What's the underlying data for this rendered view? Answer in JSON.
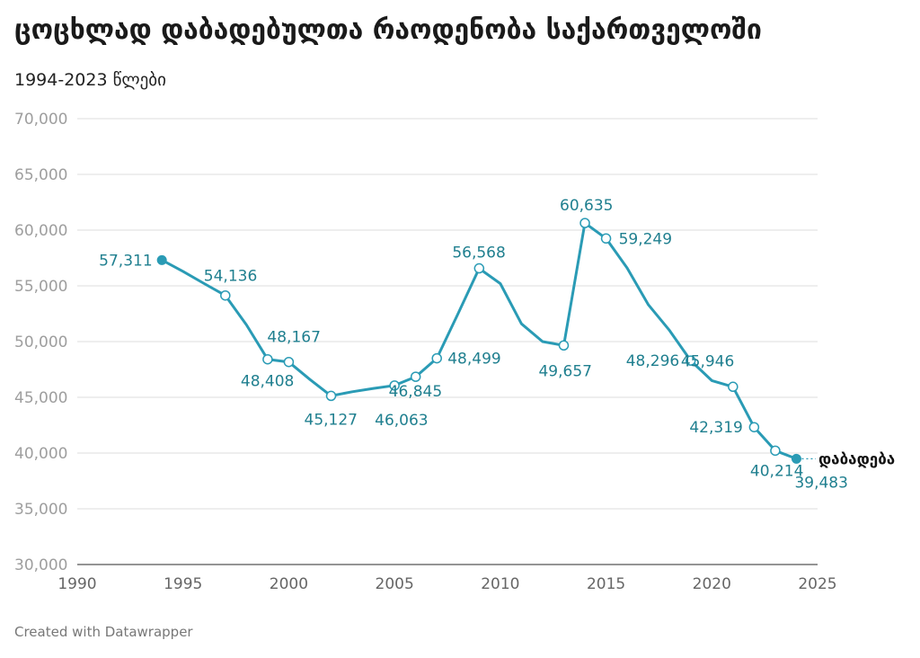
{
  "header": {
    "title": "ცოცხლად დაბადებულთა რაოდენობა საქართველოში",
    "subtitle": "1994-2023 წლები"
  },
  "footer": {
    "credit": "Created with Datawrapper"
  },
  "colors": {
    "line": "#2a9bb5",
    "label": "#1f7f8f",
    "grid": "#dcdcdc"
  },
  "chart_data": {
    "type": "line",
    "title": "ცოცხლად დაბადებულთა რაოდენობა საქართველოში",
    "subtitle": "1994-2023 წლები",
    "xlabel": "",
    "ylabel": "",
    "xlim": [
      1990,
      2025
    ],
    "ylim": [
      30000,
      70000
    ],
    "x_ticks": [
      1990,
      1995,
      2000,
      2005,
      2010,
      2015,
      2020,
      2025
    ],
    "y_ticks": [
      30000,
      35000,
      40000,
      45000,
      50000,
      55000,
      60000,
      65000,
      70000
    ],
    "y_tick_labels": [
      "30,000",
      "35,000",
      "40,000",
      "45,000",
      "50,000",
      "55,000",
      "60,000",
      "65,000",
      "70,000"
    ],
    "grid": true,
    "series": [
      {
        "name": "დაბადება",
        "x": [
          1994,
          1995,
          1996,
          1997,
          1998,
          1999,
          2000,
          2001,
          2002,
          2003,
          2004,
          2005,
          2006,
          2007,
          2008,
          2009,
          2010,
          2011,
          2012,
          2013,
          2014,
          2015,
          2016,
          2017,
          2018,
          2019,
          2020,
          2021,
          2022,
          2023,
          2024
        ],
        "values": [
          57311,
          56300,
          55200,
          54136,
          51500,
          48408,
          48167,
          46600,
          45127,
          45500,
          45800,
          46063,
          46845,
          48499,
          52500,
          56568,
          55200,
          51600,
          50000,
          49657,
          60635,
          59249,
          56600,
          53300,
          51000,
          48296,
          46500,
          45946,
          42319,
          40214,
          39483
        ]
      }
    ],
    "data_labels": [
      {
        "x": 1994,
        "text": "57,311"
      },
      {
        "x": 1997,
        "text": "54,136"
      },
      {
        "x": 1999,
        "text": "48,408"
      },
      {
        "x": 2000,
        "text": "48,167"
      },
      {
        "x": 2002,
        "text": "45,127"
      },
      {
        "x": 2005,
        "text": "46,063"
      },
      {
        "x": 2006,
        "text": "46,845"
      },
      {
        "x": 2007,
        "text": "48,499"
      },
      {
        "x": 2009,
        "text": "56,568"
      },
      {
        "x": 2013,
        "text": "49,657"
      },
      {
        "x": 2014,
        "text": "60,635"
      },
      {
        "x": 2015,
        "text": "59,249"
      },
      {
        "x": 2019,
        "text": "48,296"
      },
      {
        "x": 2021,
        "text": "45,946"
      },
      {
        "x": 2022,
        "text": "42,319"
      },
      {
        "x": 2023,
        "text": "40,214"
      },
      {
        "x": 2024,
        "text": "39,483"
      }
    ],
    "marked_points": [
      1997,
      1999,
      2000,
      2002,
      2005,
      2006,
      2007,
      2009,
      2013,
      2014,
      2015,
      2019,
      2021,
      2022,
      2023
    ],
    "filled_points": [
      1994,
      2024
    ],
    "series_label": "დაბადება"
  }
}
